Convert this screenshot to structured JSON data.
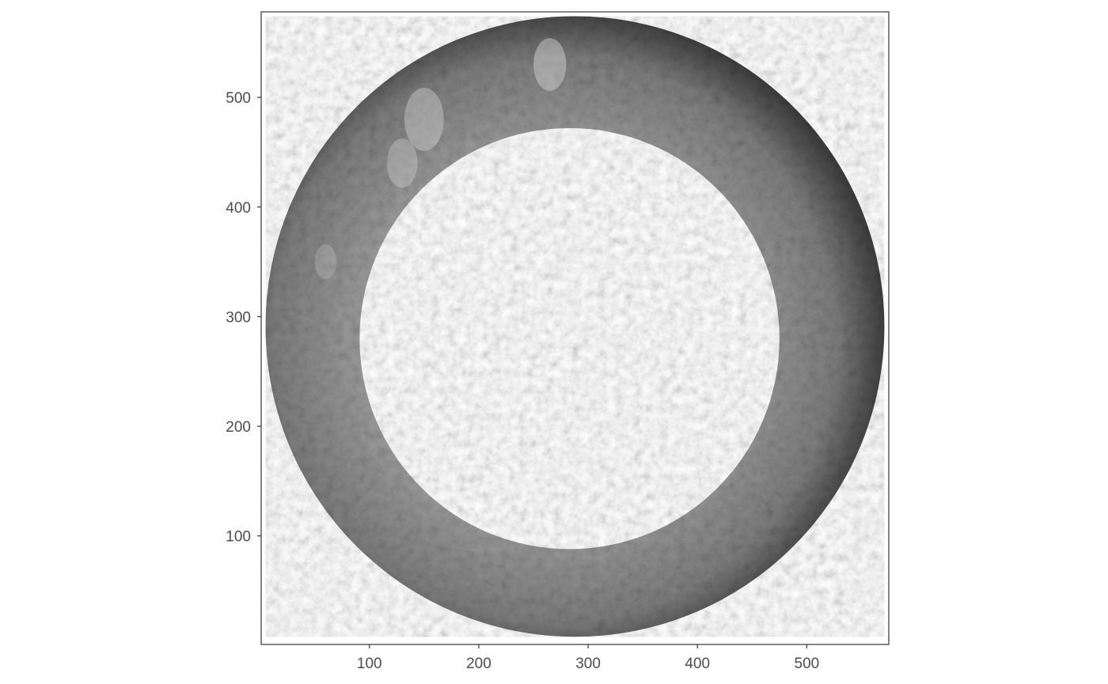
{
  "chart_data": {
    "type": "heatmap",
    "title": "",
    "xlabel": "",
    "ylabel": "",
    "xlim": [
      1,
      575
    ],
    "ylim": [
      1,
      578
    ],
    "colormap": "grayscale",
    "background": "#ffffff",
    "border_color": "#333333",
    "x_ticks": [
      {
        "value": 100,
        "label": "100"
      },
      {
        "value": 200,
        "label": "200"
      },
      {
        "value": 300,
        "label": "300"
      },
      {
        "value": 400,
        "label": "400"
      },
      {
        "value": 500,
        "label": "500"
      }
    ],
    "y_ticks": [
      {
        "value": 100,
        "label": "100"
      },
      {
        "value": 200,
        "label": "200"
      },
      {
        "value": 300,
        "label": "300"
      },
      {
        "value": 400,
        "label": "400"
      },
      {
        "value": 500,
        "label": "500"
      }
    ],
    "ring": {
      "outer": {
        "cx": 288,
        "cy": 291,
        "r": 283
      },
      "inner": {
        "cx": 283,
        "cy": 280,
        "r": 192
      }
    },
    "legend": "none",
    "grid": false
  }
}
